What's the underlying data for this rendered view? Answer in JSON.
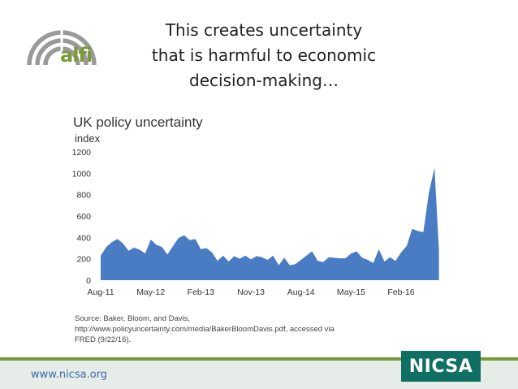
{
  "logo": {
    "text": "alfi",
    "color": "#7a9a3a"
  },
  "slide": {
    "title_lines": [
      "This creates uncertainty",
      "that is harmful to economic",
      "decision-making…"
    ]
  },
  "chart_data": {
    "type": "area",
    "title": "UK policy uncertainty",
    "ylabel": "index",
    "ylim": [
      0,
      1200
    ],
    "yticks": [
      "0",
      "200",
      "400",
      "600",
      "800",
      "1000",
      "1200"
    ],
    "xticks": [
      "Aug-11",
      "May-12",
      "Feb-13",
      "Nov-13",
      "Aug-14",
      "May-15",
      "Feb-16"
    ],
    "color": "#4a7cc4",
    "series": [
      {
        "name": "",
        "x": [
          "2011-08",
          "2011-09",
          "2011-10",
          "2011-11",
          "2011-12",
          "2012-01",
          "2012-02",
          "2012-03",
          "2012-04",
          "2012-05",
          "2012-06",
          "2012-07",
          "2012-08",
          "2012-09",
          "2012-10",
          "2012-11",
          "2012-12",
          "2013-01",
          "2013-02",
          "2013-03",
          "2013-04",
          "2013-05",
          "2013-06",
          "2013-07",
          "2013-08",
          "2013-09",
          "2013-10",
          "2013-11",
          "2013-12",
          "2014-01",
          "2014-02",
          "2014-03",
          "2014-04",
          "2014-05",
          "2014-06",
          "2014-07",
          "2014-08",
          "2014-09",
          "2014-10",
          "2014-11",
          "2014-12",
          "2015-01",
          "2015-02",
          "2015-03",
          "2015-04",
          "2015-05",
          "2015-06",
          "2015-07",
          "2015-08",
          "2015-09",
          "2015-10",
          "2015-11",
          "2015-12",
          "2016-01",
          "2016-02",
          "2016-03",
          "2016-04",
          "2016-05",
          "2016-06",
          "2016-07",
          "2016-08"
        ],
        "values": [
          230,
          310,
          355,
          385,
          345,
          275,
          305,
          285,
          250,
          380,
          330,
          310,
          240,
          320,
          395,
          420,
          375,
          385,
          290,
          300,
          260,
          180,
          230,
          175,
          225,
          200,
          230,
          195,
          225,
          215,
          190,
          230,
          140,
          210,
          140,
          150,
          190,
          230,
          270,
          180,
          170,
          215,
          210,
          205,
          205,
          250,
          270,
          210,
          190,
          160,
          290,
          175,
          215,
          180,
          260,
          320,
          480,
          460,
          450,
          820,
          1050
        ],
        "end_value": 280
      }
    ]
  },
  "source": {
    "line1": "Source: Baker, Bloom, and Davis,",
    "line2": "http://www.policyuncertainty.com/media/BakerBloomDavis.pdf, accessed via",
    "line3": "FRED (9/22/16)."
  },
  "footer": {
    "url": "www.nicsa.org",
    "brand": "NICSA",
    "brand_color": "#0f6f63"
  }
}
